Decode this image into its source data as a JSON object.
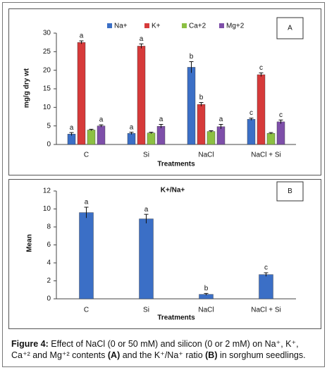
{
  "chart_data": [
    {
      "type": "bar",
      "panel": "A",
      "categories": [
        "C",
        "Si",
        "NaCl",
        "NaCl + Si"
      ],
      "xlabel": "Treatments",
      "ylabel": "mg/g dry wt",
      "ylim": [
        0,
        30
      ],
      "yticks": [
        0,
        5,
        10,
        15,
        20,
        25,
        30
      ],
      "series": [
        {
          "name": "Na+",
          "color": "#3b6fc6",
          "values": [
            2.8,
            3.0,
            20.8,
            6.8
          ],
          "errors": [
            0.4,
            0.3,
            1.5,
            0.3
          ],
          "annotations": [
            "a",
            "a",
            "b",
            "c"
          ]
        },
        {
          "name": "K+",
          "color": "#d63a3a",
          "values": [
            27.5,
            26.5,
            10.8,
            18.8
          ],
          "errors": [
            0.4,
            0.6,
            0.5,
            0.5
          ],
          "annotations": [
            "a",
            "a",
            "b",
            "c"
          ]
        },
        {
          "name": "Ca+2",
          "color": "#8cc043",
          "values": [
            3.9,
            3.1,
            3.5,
            3.0
          ],
          "errors": [
            0.2,
            0.2,
            0.2,
            0.2
          ]
        },
        {
          "name": "Mg+2",
          "color": "#7e4fa9",
          "values": [
            5.0,
            4.9,
            4.8,
            6.1
          ],
          "errors": [
            0.3,
            0.5,
            0.6,
            0.5
          ],
          "annotations": [
            "a",
            "a",
            "a",
            "c"
          ]
        }
      ]
    },
    {
      "type": "bar",
      "panel": "B",
      "title": "K+/Na+",
      "categories": [
        "C",
        "Si",
        "NaCl",
        "NaCl + Si"
      ],
      "xlabel": "Treatments",
      "ylabel": "Mean",
      "ylim": [
        0,
        12
      ],
      "yticks": [
        0,
        2,
        4,
        6,
        8,
        10,
        12
      ],
      "series": [
        {
          "color": "#3b6fc6",
          "values": [
            9.6,
            8.9,
            0.5,
            2.7
          ],
          "errors": [
            0.6,
            0.5,
            0.1,
            0.2
          ],
          "annotations": [
            "a",
            "a",
            "b",
            "c"
          ]
        }
      ]
    }
  ],
  "caption": {
    "label": "Figure 4:",
    "parts": [
      "Effect of NaCl (0 or 50 mM) and silicon (0 or 2 mM) on Na⁺, K⁺, Ca⁺² and Mg⁺² contents ",
      "(A)",
      " and the  K⁺/Na⁺ ratio ",
      "(B)",
      " in sorghum seedlings."
    ]
  }
}
